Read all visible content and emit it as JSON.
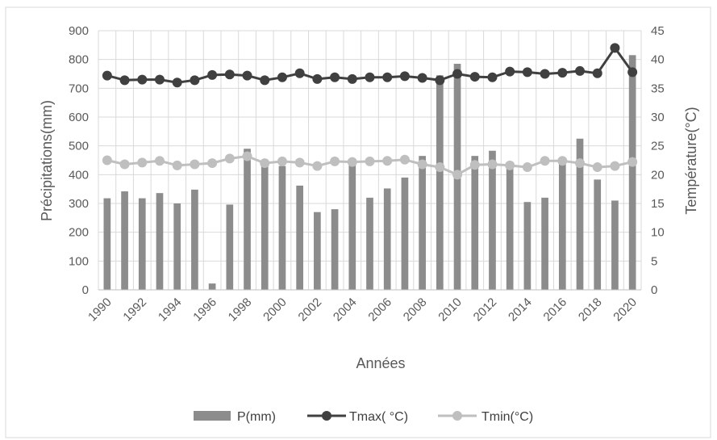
{
  "chart_data": {
    "type": "bar",
    "title": "",
    "xlabel": "Années",
    "ylabel": "Précipitations(mm)",
    "y2label": "Température(°C)",
    "x": [
      1990,
      1991,
      1992,
      1993,
      1994,
      1995,
      1996,
      1997,
      1998,
      1999,
      2000,
      2001,
      2002,
      2003,
      2004,
      2005,
      2006,
      2007,
      2008,
      2009,
      2010,
      2011,
      2012,
      2013,
      2014,
      2015,
      2016,
      2017,
      2018,
      2019,
      2020
    ],
    "x_tick_labels": [
      "1990",
      "1992",
      "1994",
      "1996",
      "1998",
      "2000",
      "2002",
      "2004",
      "2006",
      "2008",
      "2010",
      "2012",
      "2014",
      "2016",
      "2018",
      "2020"
    ],
    "ylim": [
      0,
      900
    ],
    "y_ticks": [
      "0",
      "100",
      "200",
      "300",
      "400",
      "500",
      "600",
      "700",
      "800",
      "900"
    ],
    "y2lim": [
      0,
      45
    ],
    "y2_ticks": [
      "0",
      "5",
      "10",
      "15",
      "20",
      "25",
      "30",
      "35",
      "40",
      "45"
    ],
    "grid": true,
    "legend_position": "bottom",
    "series": [
      {
        "name": "P(mm)",
        "type": "bar",
        "axis": "left",
        "color": "#8c8c8c",
        "values": [
          318,
          342,
          318,
          336,
          300,
          348,
          22,
          296,
          490,
          440,
          430,
          362,
          270,
          280,
          450,
          320,
          352,
          390,
          465,
          745,
          785,
          465,
          483,
          440,
          305,
          320,
          450,
          525,
          383,
          310,
          815
        ]
      },
      {
        "name": "Tmax( °C)",
        "type": "line",
        "axis": "right",
        "color": "#404040",
        "values": [
          37.2,
          36.4,
          36.5,
          36.5,
          36.0,
          36.4,
          37.3,
          37.4,
          37.2,
          36.4,
          36.9,
          37.6,
          36.6,
          36.9,
          36.6,
          36.9,
          36.9,
          37.1,
          36.8,
          36.4,
          37.5,
          37.0,
          36.9,
          37.9,
          37.8,
          37.5,
          37.7,
          38.0,
          37.6,
          42.0,
          37.8
        ]
      },
      {
        "name": "Tmin(°C)",
        "type": "line",
        "axis": "right",
        "color": "#bfbfbf",
        "values": [
          22.5,
          21.8,
          22.1,
          22.4,
          21.6,
          21.8,
          22.0,
          22.8,
          23.2,
          22.0,
          22.3,
          22.1,
          21.5,
          22.3,
          22.2,
          22.3,
          22.4,
          22.6,
          21.8,
          21.3,
          20.0,
          21.7,
          21.8,
          21.6,
          21.3,
          22.4,
          22.4,
          22.0,
          21.3,
          21.5,
          22.2
        ]
      }
    ]
  }
}
